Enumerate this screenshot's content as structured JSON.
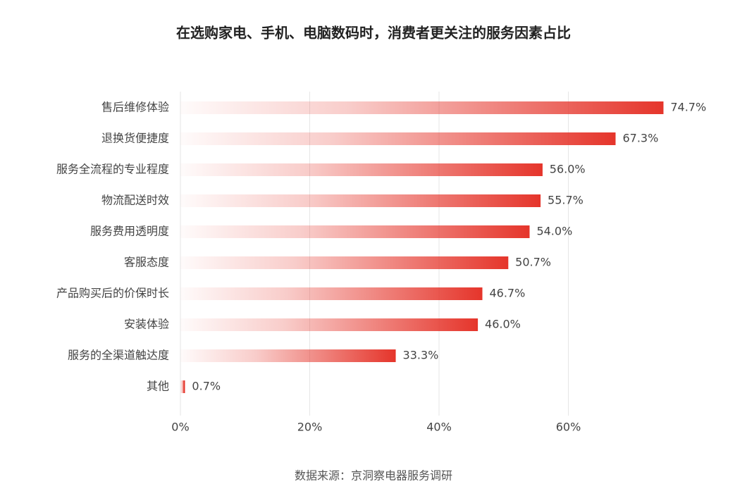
{
  "chart_data": {
    "type": "bar",
    "orientation": "horizontal",
    "title": "在选购家电、手机、电脑数码时，消费者更关注的服务因素占比",
    "categories": [
      "售后维修体验",
      "退换货便捷度",
      "服务全流程的专业程度",
      "物流配送时效",
      "服务费用透明度",
      "客服态度",
      "产品购买后的价保时长",
      "安装体验",
      "服务的全渠道触达度",
      "其他"
    ],
    "values": [
      74.7,
      67.3,
      56.0,
      55.7,
      54.0,
      50.7,
      46.7,
      46.0,
      33.3,
      0.7
    ],
    "value_labels": [
      "74.7%",
      "67.3%",
      "56.0%",
      "55.7%",
      "54.0%",
      "50.7%",
      "46.7%",
      "46.0%",
      "33.3%",
      "0.7%"
    ],
    "color": "#e5352b",
    "xlim": [
      0,
      80
    ],
    "xticks": [
      {
        "value": 0,
        "label": "0%"
      },
      {
        "value": 20,
        "label": "20%"
      },
      {
        "value": 40,
        "label": "40%"
      },
      {
        "value": 60,
        "label": "60%"
      }
    ],
    "grid": true,
    "source": "数据来源：京洞察电器服务调研"
  }
}
